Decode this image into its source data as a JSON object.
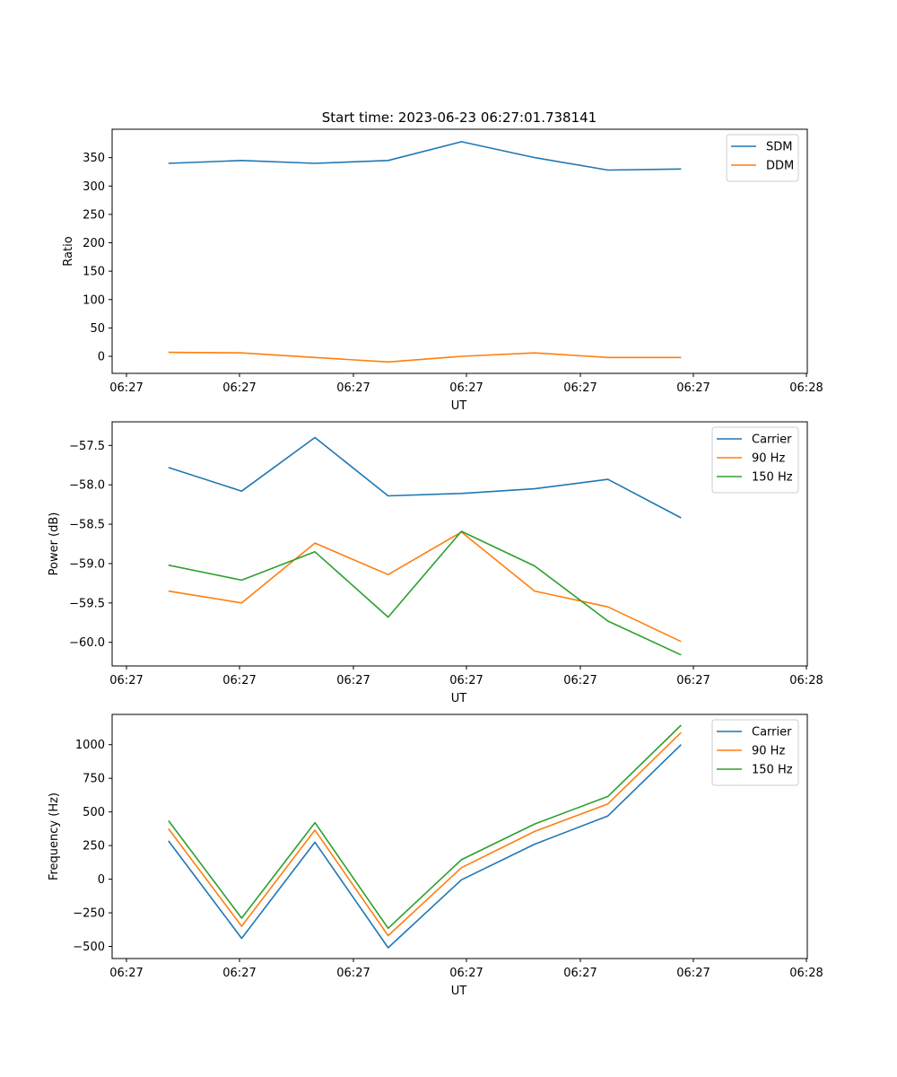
{
  "figure": {
    "title": "Start time: 2023-06-23 06:27:01.738141"
  },
  "colors": {
    "blue": "#1f77b4",
    "orange": "#ff7f0e",
    "green": "#2ca02c"
  },
  "chart_data": [
    {
      "type": "line",
      "title": "Start time: 2023-06-23 06:27:01.738141",
      "xlabel": "UT",
      "ylabel": "Ratio",
      "x_tick_labels": [
        "06:27",
        "06:27",
        "06:27",
        "06:27",
        "06:27",
        "06:27",
        "06:27"
      ],
      "x_tick_last_label": "06:28",
      "xlim": [
        0.0,
        6.17
      ],
      "x": [
        0.5,
        1.15,
        1.8,
        2.45,
        3.1,
        3.75,
        4.4,
        5.05
      ],
      "ylim": [
        -30,
        400
      ],
      "yticks": [
        0,
        50,
        100,
        150,
        200,
        250,
        300,
        350
      ],
      "legend": "top-right",
      "series": [
        {
          "name": "SDM",
          "color": "blue",
          "values": [
            340,
            345,
            340,
            345,
            378,
            350,
            328,
            330
          ]
        },
        {
          "name": "DDM",
          "color": "orange",
          "values": [
            7,
            6,
            -2,
            -10,
            0,
            6,
            -2,
            -2
          ]
        }
      ]
    },
    {
      "type": "line",
      "title": "",
      "xlabel": "UT",
      "ylabel": "Power (dB)",
      "x_tick_labels": [
        "06:27",
        "06:27",
        "06:27",
        "06:27",
        "06:27",
        "06:27",
        "06:27"
      ],
      "x_tick_last_label": "06:28",
      "xlim": [
        0.0,
        6.17
      ],
      "x": [
        0.5,
        1.15,
        1.8,
        2.45,
        3.1,
        3.75,
        4.4,
        5.05
      ],
      "ylim": [
        -60.3,
        -57.2
      ],
      "yticks": [
        -60.0,
        -59.5,
        -59.0,
        -58.5,
        -58.0,
        -57.5
      ],
      "ytick_labels": [
        "−60.0",
        "−59.5",
        "−59.0",
        "−58.5",
        "−58.0",
        "−57.5"
      ],
      "legend": "top-right",
      "series": [
        {
          "name": "Carrier",
          "color": "blue",
          "values": [
            -57.78,
            -58.08,
            -57.4,
            -58.14,
            -58.11,
            -58.05,
            -57.93,
            -58.42
          ]
        },
        {
          "name": "90 Hz",
          "color": "orange",
          "values": [
            -59.35,
            -59.5,
            -58.74,
            -59.14,
            -58.6,
            -59.35,
            -59.55,
            -59.99
          ]
        },
        {
          "name": "150 Hz",
          "color": "green",
          "values": [
            -59.02,
            -59.21,
            -58.85,
            -59.68,
            -58.59,
            -59.03,
            -59.73,
            -60.16
          ]
        }
      ]
    },
    {
      "type": "line",
      "title": "",
      "xlabel": "UT",
      "ylabel": "Frequency (Hz)",
      "x_tick_labels": [
        "06:27",
        "06:27",
        "06:27",
        "06:27",
        "06:27",
        "06:27",
        "06:27"
      ],
      "x_tick_last_label": "06:28",
      "xlim": [
        0.0,
        6.17
      ],
      "x": [
        0.5,
        1.15,
        1.8,
        2.45,
        3.1,
        3.75,
        4.4,
        5.05
      ],
      "ylim": [
        -590,
        1225
      ],
      "yticks": [
        -500,
        -250,
        0,
        250,
        500,
        750,
        1000
      ],
      "ytick_labels": [
        "−500",
        "−250",
        "0",
        "250",
        "500",
        "750",
        "1000"
      ],
      "legend": "top-right",
      "series": [
        {
          "name": "Carrier",
          "color": "blue",
          "values": [
            285,
            -440,
            275,
            -510,
            -5,
            260,
            470,
            1000
          ]
        },
        {
          "name": "90 Hz",
          "color": "orange",
          "values": [
            375,
            -350,
            365,
            -420,
            85,
            355,
            560,
            1090
          ]
        },
        {
          "name": "150 Hz",
          "color": "green",
          "values": [
            435,
            -290,
            420,
            -365,
            145,
            410,
            615,
            1145
          ]
        }
      ]
    }
  ]
}
